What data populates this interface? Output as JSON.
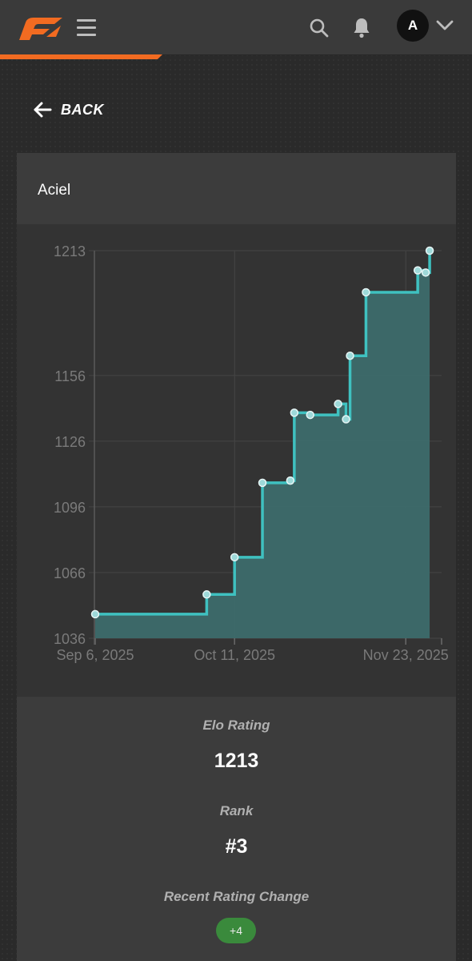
{
  "header": {
    "logo_icon": "brand-logo-icon",
    "menu_icon": "hamburger-menu-icon",
    "search_icon": "search-icon",
    "bell_icon": "notification-bell-icon",
    "avatar_initial": "A",
    "chevron_icon": "chevron-down-icon",
    "accent_color": "#f26b21"
  },
  "back": {
    "label": "BACK",
    "icon": "arrow-left-icon"
  },
  "player": {
    "name": "Aciel"
  },
  "chart_data": {
    "type": "area",
    "step": true,
    "title": "",
    "xlabel": "",
    "ylabel": "",
    "y_ticks": [
      1036,
      1066,
      1096,
      1126,
      1156,
      1213
    ],
    "x_ticks": [
      "Sep 6, 2025",
      "Oct 11, 2025",
      "Nov 23, 2025"
    ],
    "ylim": [
      1036,
      1213
    ],
    "xlim": [
      "2025-09-06",
      "2025-12-02"
    ],
    "grid": true,
    "line_color": "#3fc1c0",
    "fill_color": "#3d6b6b",
    "points": [
      {
        "date": "2025-09-06",
        "elo": 1047
      },
      {
        "date": "2025-10-04",
        "elo": 1056
      },
      {
        "date": "2025-10-11",
        "elo": 1073
      },
      {
        "date": "2025-10-18",
        "elo": 1107
      },
      {
        "date": "2025-10-25",
        "elo": 1108
      },
      {
        "date": "2025-10-26",
        "elo": 1139
      },
      {
        "date": "2025-10-30",
        "elo": 1138
      },
      {
        "date": "2025-11-06",
        "elo": 1143
      },
      {
        "date": "2025-11-08",
        "elo": 1136
      },
      {
        "date": "2025-11-09",
        "elo": 1165
      },
      {
        "date": "2025-11-13",
        "elo": 1194
      },
      {
        "date": "2025-11-26",
        "elo": 1204
      },
      {
        "date": "2025-11-28",
        "elo": 1203
      },
      {
        "date": "2025-11-29",
        "elo": 1213
      }
    ]
  },
  "stats": {
    "elo_label": "Elo Rating",
    "elo_value": "1213",
    "rank_label": "Rank",
    "rank_value": "#3",
    "change_label": "Recent Rating Change",
    "change_value": "+4",
    "change_color": "#3a8a3c"
  }
}
